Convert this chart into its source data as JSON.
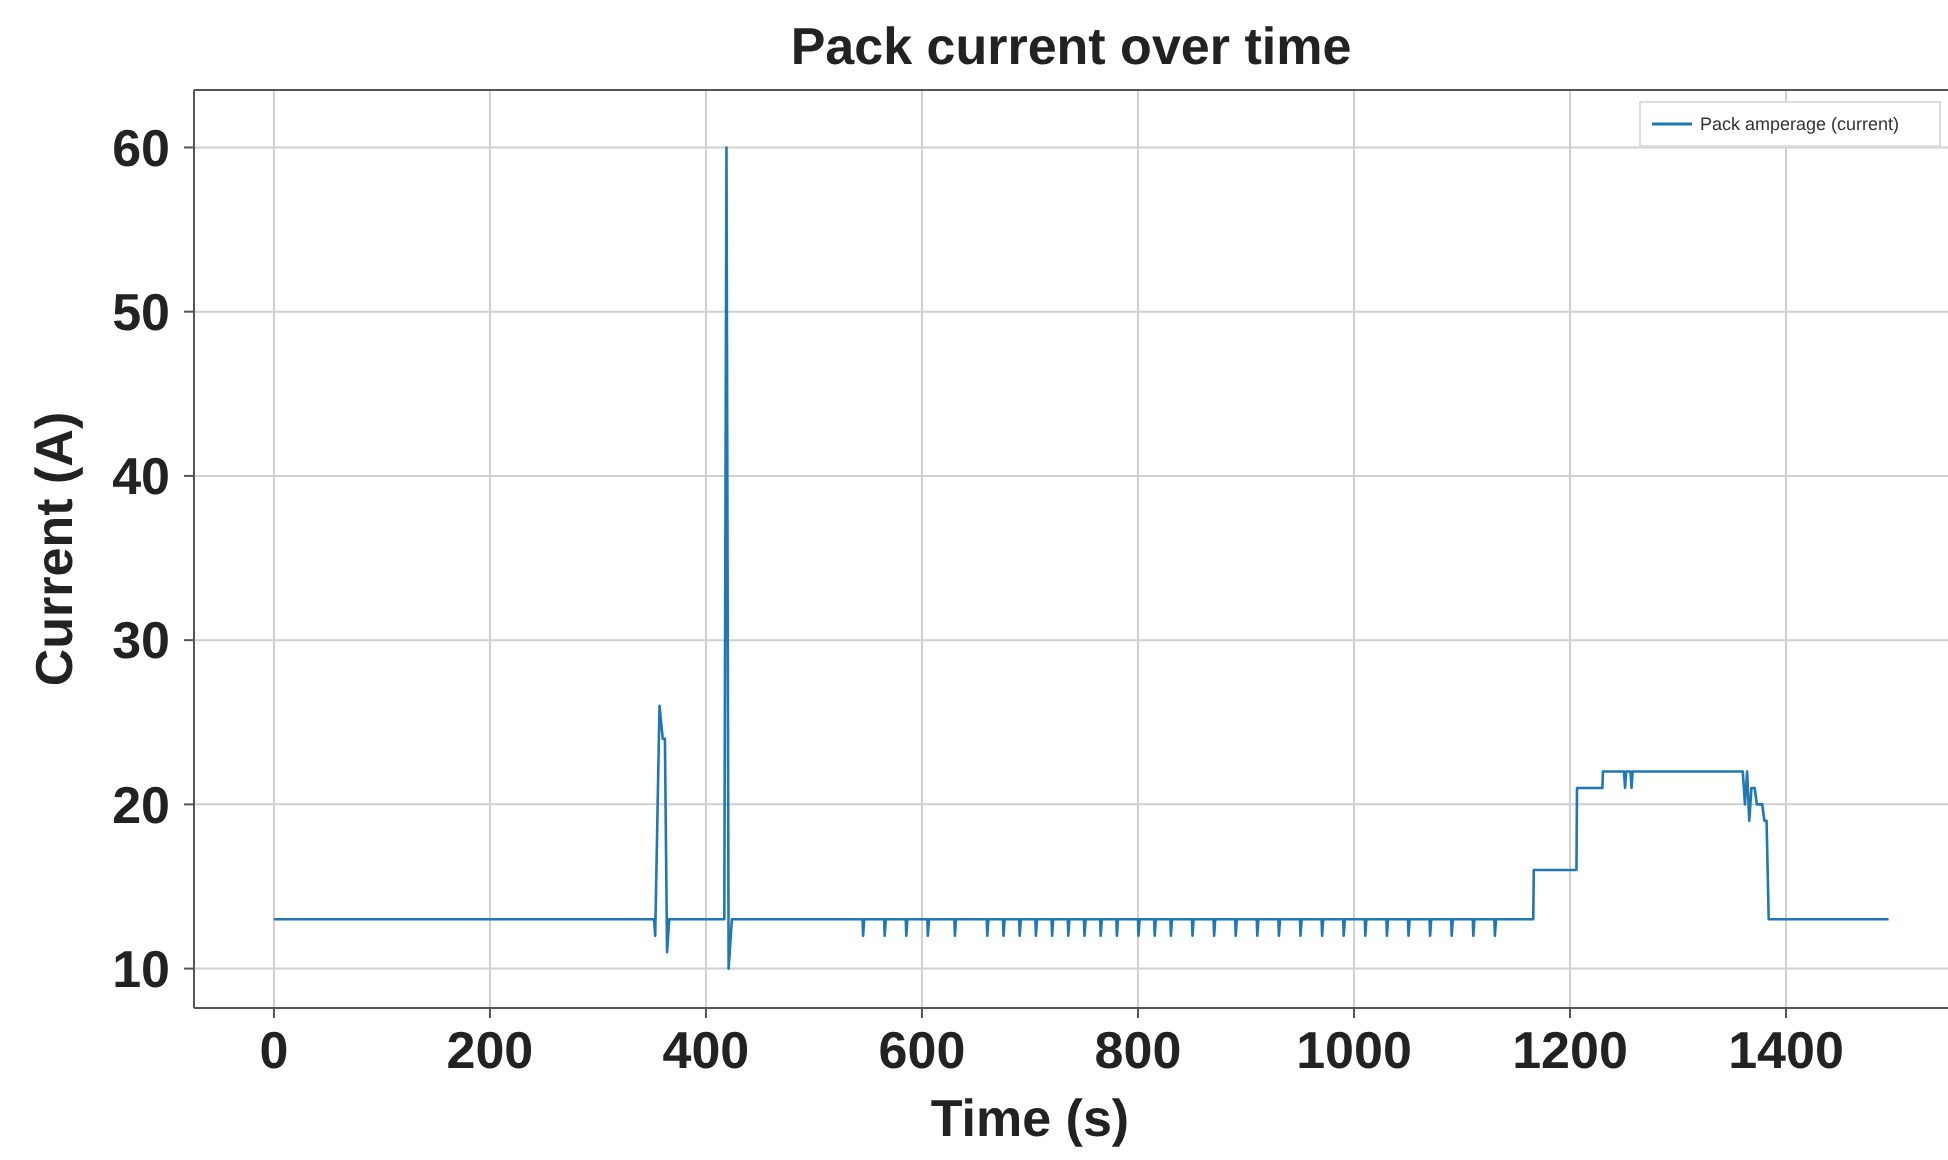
{
  "chart_data": {
    "type": "line",
    "title": "Pack current over time",
    "xlabel": "Time (s)",
    "ylabel": "Current (A)",
    "xlim": [
      -74,
      1550
    ],
    "ylim": [
      7.6,
      63.5
    ],
    "xticks": [
      0,
      200,
      400,
      600,
      800,
      1000,
      1200,
      1400
    ],
    "yticks": [
      10,
      20,
      30,
      40,
      50,
      60
    ],
    "grid": true,
    "legend": "top right",
    "line_style": "solid",
    "marker": "none",
    "series": [
      {
        "name": "Pack amperage (current)",
        "color": "#1f77b4",
        "x": [
          0,
          352,
          353,
          357,
          360,
          362,
          364,
          366,
          417,
          419,
          421,
          424,
          545,
          545.5,
          546.5,
          565,
          565.5,
          566.5,
          585,
          585.5,
          586.5,
          605,
          605.5,
          606.5,
          630,
          630.5,
          631.5,
          660,
          660.5,
          661.5,
          675,
          675.5,
          676.5,
          690,
          690.5,
          691.5,
          705,
          705.5,
          706.5,
          720,
          720.5,
          721.5,
          735,
          735.5,
          736.5,
          750,
          750.5,
          751.5,
          765,
          765.5,
          766.5,
          780,
          780.5,
          781.5,
          800,
          800.5,
          801.5,
          815,
          815.5,
          816.5,
          830,
          830.5,
          831.5,
          850,
          850.5,
          851.5,
          870,
          870.5,
          871.5,
          890,
          890.5,
          891.5,
          910,
          910.5,
          911.5,
          930,
          930.5,
          931.5,
          950,
          950.5,
          951.5,
          970,
          970.5,
          971.5,
          990,
          990.5,
          991.5,
          1010,
          1010.5,
          1011.5,
          1030,
          1030.5,
          1031.5,
          1050,
          1050.5,
          1051.5,
          1070,
          1070.5,
          1071.5,
          1090,
          1090.5,
          1091.5,
          1110,
          1110.5,
          1111.5,
          1130,
          1130.5,
          1131.5,
          1166,
          1166.5,
          1206,
          1206.5,
          1230,
          1230.5,
          1250,
          1251,
          1252,
          1256,
          1257,
          1258,
          1360,
          1362,
          1364,
          1366,
          1368,
          1371,
          1373,
          1378,
          1380,
          1382,
          1384,
          1495
        ],
        "values": [
          13,
          13,
          12,
          26,
          24,
          24,
          11,
          13,
          13,
          60,
          10,
          13,
          13,
          12,
          13,
          13,
          12,
          13,
          13,
          12,
          13,
          13,
          12,
          13,
          13,
          12,
          13,
          13,
          12,
          13,
          13,
          12,
          13,
          13,
          12,
          13,
          13,
          12,
          13,
          13,
          12,
          13,
          13,
          12,
          13,
          13,
          12,
          13,
          13,
          12,
          13,
          13,
          12,
          13,
          13,
          12,
          13,
          13,
          12,
          13,
          13,
          12,
          13,
          13,
          12,
          13,
          13,
          12,
          13,
          13,
          12,
          13,
          13,
          12,
          13,
          13,
          12,
          13,
          13,
          12,
          13,
          13,
          12,
          13,
          13,
          12,
          13,
          13,
          12,
          13,
          13,
          12,
          13,
          13,
          12,
          13,
          13,
          12,
          13,
          13,
          12,
          13,
          13,
          12,
          13,
          13,
          12,
          13,
          13,
          16,
          16,
          21,
          21,
          22,
          22,
          21,
          22,
          22,
          21,
          22,
          22,
          20,
          22,
          19,
          21,
          21,
          20,
          20,
          19,
          19,
          13,
          13
        ]
      }
    ]
  }
}
